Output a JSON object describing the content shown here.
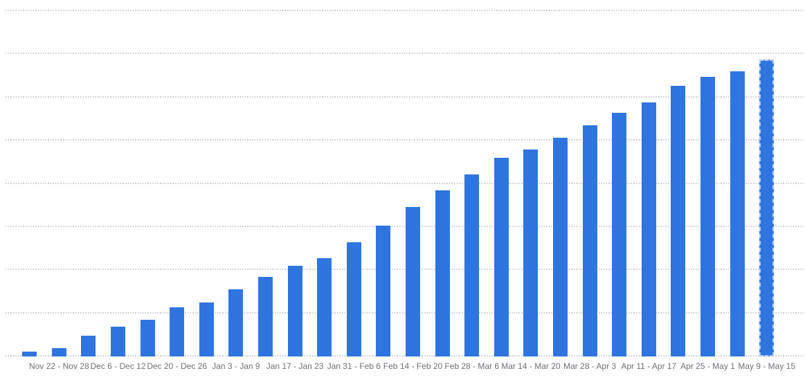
{
  "chart_data": {
    "type": "bar",
    "title": "",
    "subtitle": "",
    "legend": "none",
    "bar_count": 26,
    "values_grid_units": [
      0.1,
      0.18,
      0.47,
      0.68,
      0.84,
      1.12,
      1.24,
      1.54,
      1.83,
      2.08,
      2.26,
      2.63,
      3.02,
      3.45,
      3.83,
      4.21,
      4.58,
      4.78,
      5.05,
      5.34,
      5.63,
      5.87,
      6.26,
      6.46,
      6.59,
      6.87
    ],
    "ylim": [
      0,
      8
    ],
    "y_tick_labels": [],
    "gridline_count": 9,
    "grid_style": "dotted-horizontal",
    "x_tick_labels": [
      "Nov 22 - Nov 28",
      "Dec 6 - Dec 12",
      "Dec 20 - Dec 26",
      "Jan 3 - Jan 9",
      "Jan 17 - Jan 23",
      "Jan 31 - Feb 6",
      "Feb 14 - Feb 20",
      "Feb 28 - Mar 6",
      "Mar 14 - Mar 20",
      "Mar 28 - Apr 3",
      "Apr 11 - Apr 17",
      "Apr 25 - May 1",
      "May 9 - May 15"
    ],
    "x_tick_under_bar_indices": [
      1,
      3,
      5,
      7,
      9,
      11,
      13,
      15,
      17,
      19,
      21,
      23,
      25
    ],
    "last_bar_partial_dashed": true,
    "colors": {
      "bar": "#2e75e0",
      "partial_bar_dash_border": "#b7c9ee",
      "gridline": "#c8cbd3",
      "tick_label": "#6d7076",
      "background": "#ffffff"
    }
  }
}
